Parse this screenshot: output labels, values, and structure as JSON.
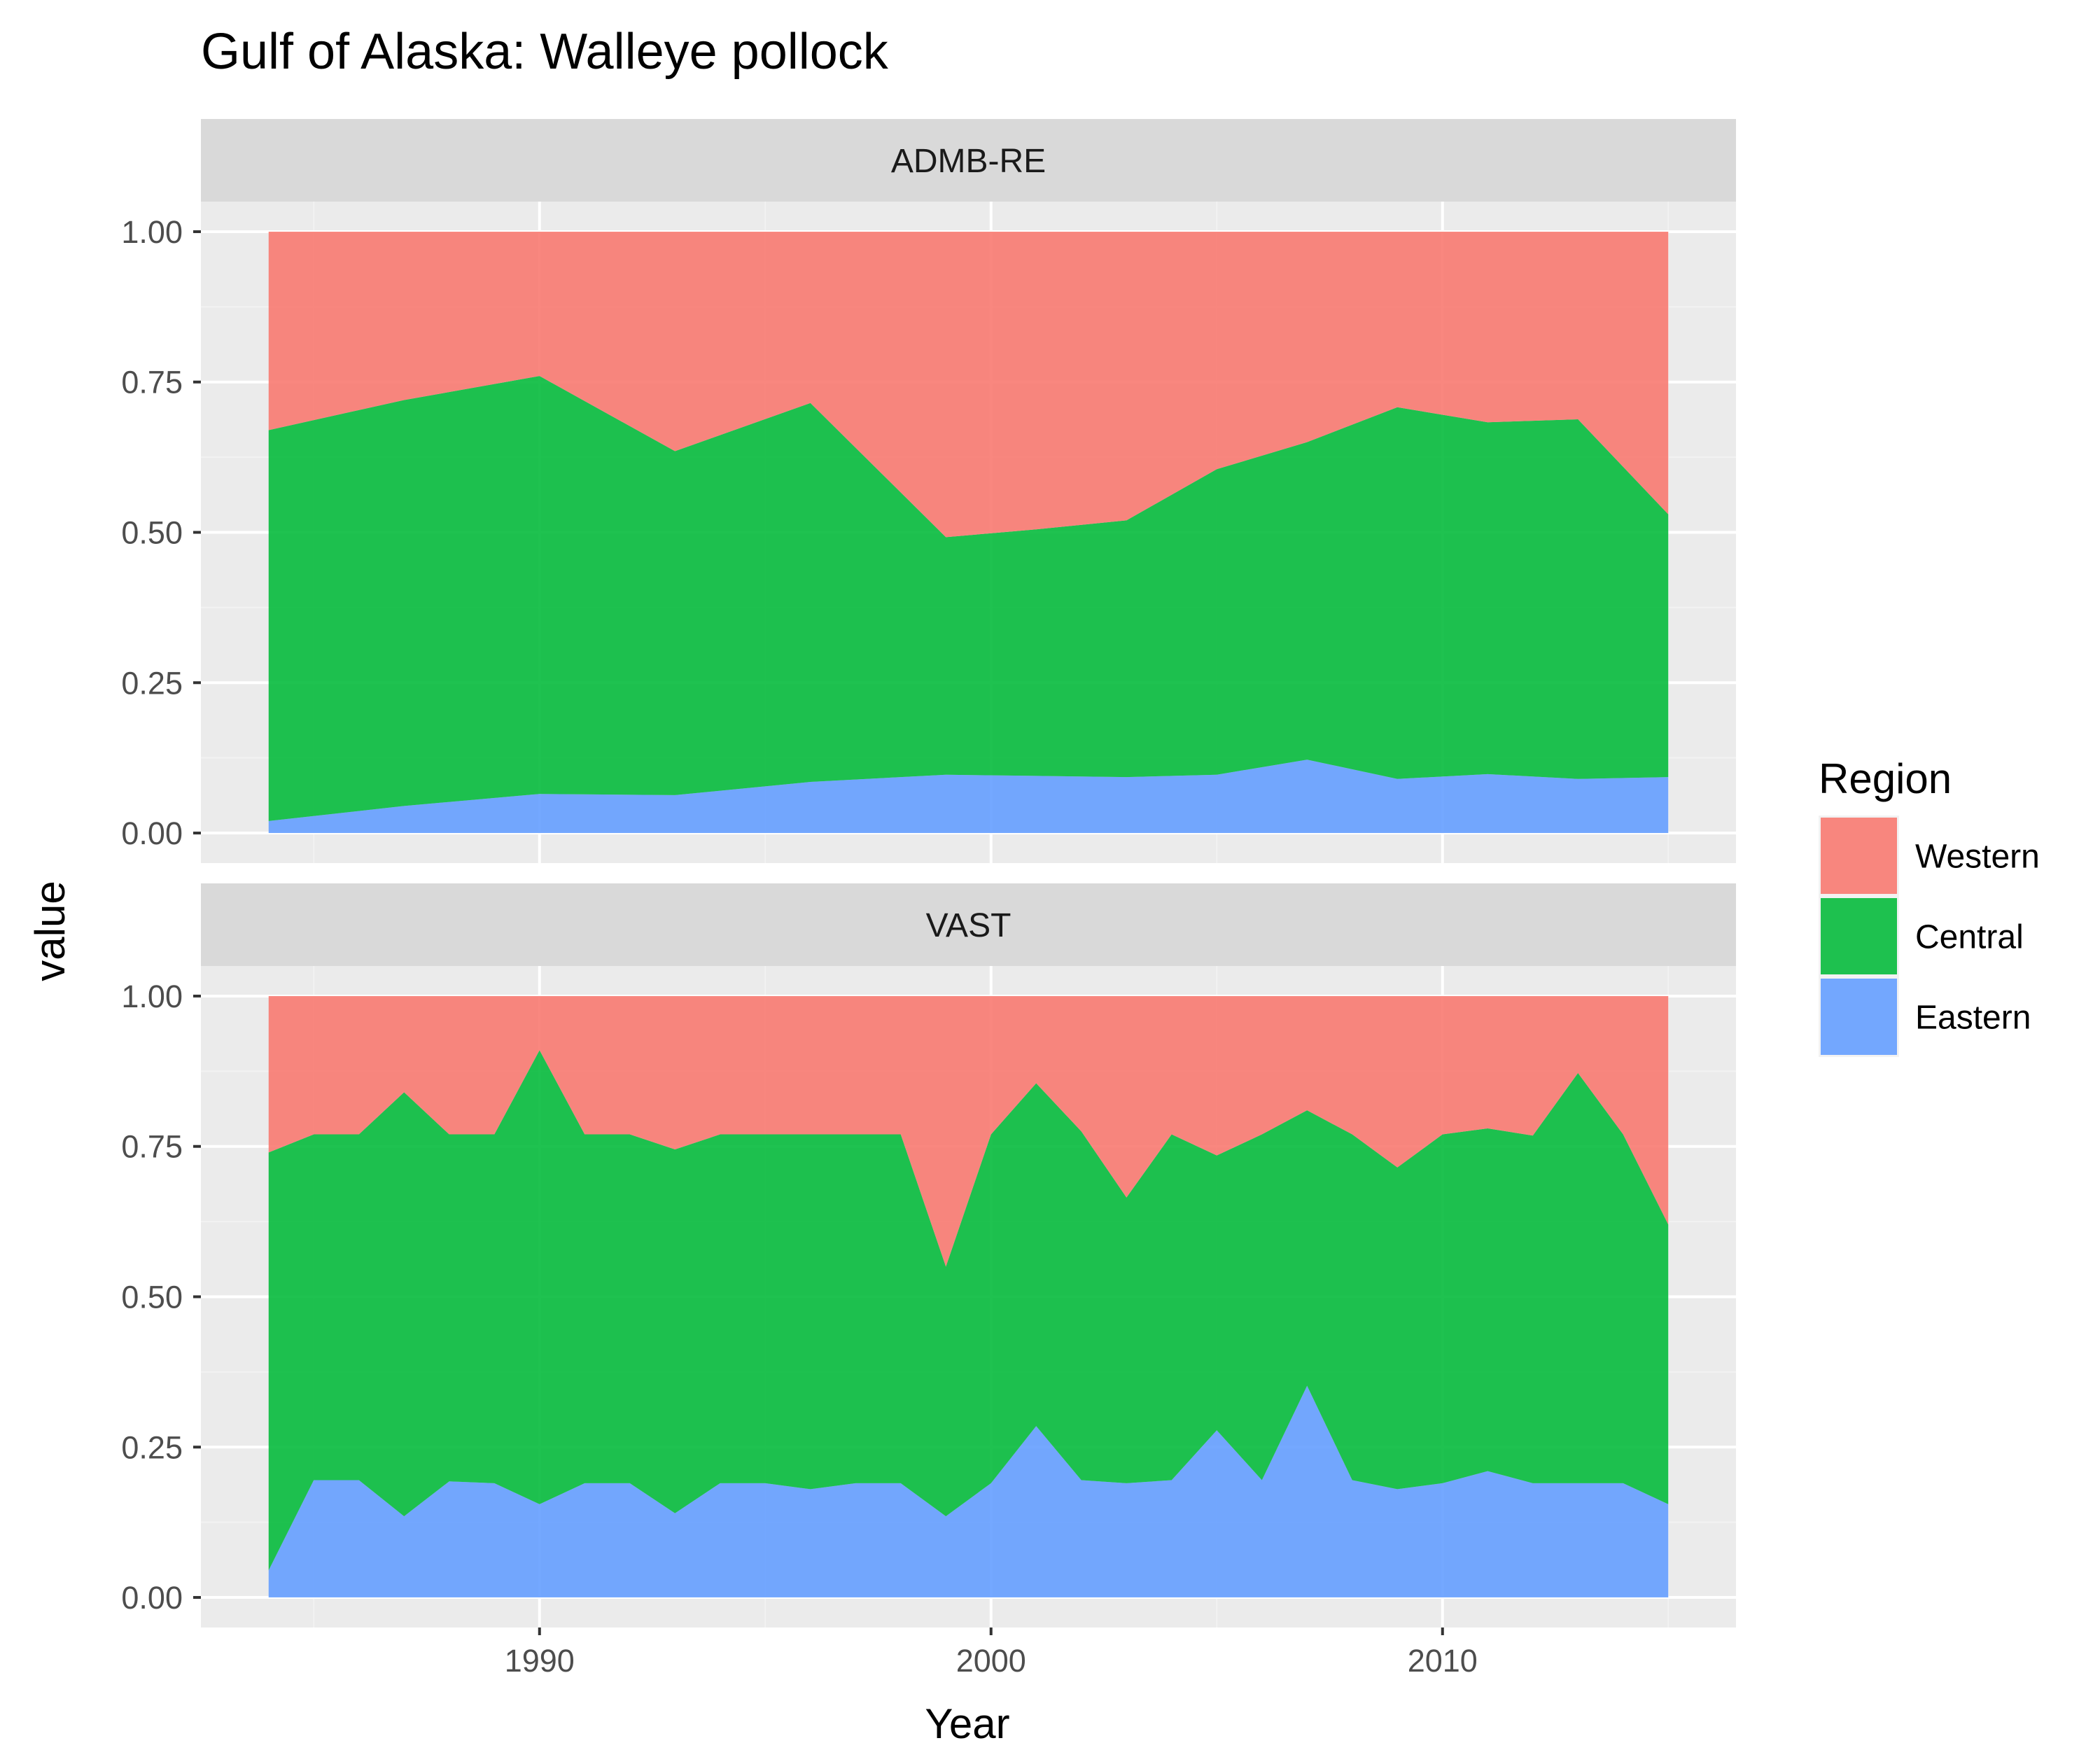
{
  "chart_data": {
    "type": "area",
    "stacked": true,
    "title": "Gulf of Alaska: Walleye pollock",
    "xlabel": "Year",
    "ylabel": "value",
    "xlim": [
      1982.5,
      2016.5
    ],
    "ylim": [
      -0.05,
      1.05
    ],
    "x_ticks": [
      1990,
      2000,
      2010
    ],
    "y_ticks": [
      0.0,
      0.25,
      0.5,
      0.75,
      1.0
    ],
    "y_tick_labels": [
      "0.00",
      "0.25",
      "0.50",
      "0.75",
      "1.00"
    ],
    "grid": true,
    "legend": {
      "title": "Region",
      "position": "right",
      "entries": [
        {
          "name": "Western",
          "color": "#F8766D"
        },
        {
          "name": "Central",
          "color": "#00BA38"
        },
        {
          "name": "Eastern",
          "color": "#619CFF"
        }
      ]
    },
    "panels": [
      {
        "strip": "ADMB-RE",
        "x": [
          1984,
          1987,
          1990,
          1993,
          1996,
          1999,
          2001,
          2003,
          2005,
          2007,
          2009,
          2011,
          2013,
          2015
        ],
        "series": [
          {
            "name": "Eastern",
            "values": [
              0.02,
              0.045,
              0.065,
              0.063,
              0.085,
              0.097,
              0.095,
              0.093,
              0.097,
              0.122,
              0.09,
              0.098,
              0.09,
              0.093
            ]
          },
          {
            "name": "Central",
            "values": [
              0.65,
              0.675,
              0.695,
              0.572,
              0.63,
              0.395,
              0.41,
              0.427,
              0.508,
              0.528,
              0.618,
              0.585,
              0.598,
              0.437
            ]
          },
          {
            "name": "Western",
            "values": [
              0.33,
              0.28,
              0.24,
              0.365,
              0.285,
              0.508,
              0.495,
              0.48,
              0.395,
              0.35,
              0.292,
              0.317,
              0.312,
              0.47
            ]
          }
        ]
      },
      {
        "strip": "VAST",
        "x": [
          1984,
          1985,
          1986,
          1987,
          1988,
          1989,
          1990,
          1991,
          1992,
          1993,
          1994,
          1995,
          1996,
          1997,
          1998,
          1999,
          2000,
          2001,
          2002,
          2003,
          2004,
          2005,
          2006,
          2007,
          2008,
          2009,
          2010,
          2011,
          2012,
          2013,
          2014,
          2015
        ],
        "series": [
          {
            "name": "Eastern",
            "values": [
              0.045,
              0.195,
              0.195,
              0.135,
              0.193,
              0.19,
              0.155,
              0.19,
              0.19,
              0.14,
              0.19,
              0.19,
              0.18,
              0.19,
              0.19,
              0.135,
              0.19,
              0.285,
              0.195,
              0.19,
              0.195,
              0.278,
              0.195,
              0.352,
              0.195,
              0.18,
              0.19,
              0.21,
              0.19,
              0.19,
              0.19,
              0.155
            ]
          },
          {
            "name": "Central",
            "values": [
              0.695,
              0.575,
              0.575,
              0.705,
              0.577,
              0.58,
              0.755,
              0.58,
              0.58,
              0.605,
              0.58,
              0.58,
              0.59,
              0.58,
              0.58,
              0.415,
              0.58,
              0.57,
              0.58,
              0.475,
              0.575,
              0.457,
              0.575,
              0.458,
              0.575,
              0.535,
              0.58,
              0.57,
              0.578,
              0.682,
              0.58,
              0.465
            ]
          },
          {
            "name": "Western",
            "values": [
              0.26,
              0.23,
              0.23,
              0.16,
              0.23,
              0.23,
              0.09,
              0.23,
              0.23,
              0.255,
              0.23,
              0.23,
              0.23,
              0.23,
              0.23,
              0.45,
              0.23,
              0.145,
              0.225,
              0.335,
              0.23,
              0.265,
              0.23,
              0.19,
              0.23,
              0.285,
              0.23,
              0.22,
              0.232,
              0.128,
              0.23,
              0.38
            ]
          }
        ]
      }
    ]
  }
}
